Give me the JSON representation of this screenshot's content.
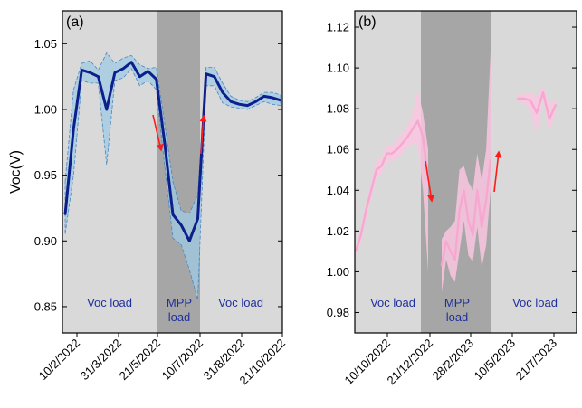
{
  "chart_data": [
    {
      "type": "line",
      "panel_label": "(a)",
      "ylabel": "Voc(V)",
      "xlabel": "",
      "ylim": [
        0.83,
        1.075
      ],
      "yticks": [
        0.85,
        0.9,
        0.95,
        1.0,
        1.05
      ],
      "ytick_labels": [
        "0.85",
        "0.90",
        "0.95",
        "1.00",
        "1.05"
      ],
      "xtick_labels": [
        "10/2/2022",
        "31/3/2022",
        "21/5/2022",
        "10/7/2022",
        "31/8/2022",
        "21/10/2022"
      ],
      "grid": false,
      "line_color": "#0d1f8c",
      "band_color": "#9fcbe3",
      "background_color": "#d9d9d9",
      "shade_color": "#a6a6a6",
      "regions": [
        {
          "label": "Voc load"
        },
        {
          "label": "MPP load"
        },
        {
          "label": "Voc load"
        }
      ],
      "series": [
        {
          "values": [
            0.92,
            0.985,
            1.03,
            1.028,
            1.025,
            1.0,
            1.028,
            1.031,
            1.036,
            1.025,
            1.029,
            1.023,
            0.975,
            0.92,
            0.912,
            0.9,
            0.917,
            1.027,
            1.025,
            1.013,
            1.006,
            1.004,
            1.003,
            1.006,
            1.01,
            1.009,
            1.007
          ],
          "upper": [
            0.945,
            1.015,
            1.035,
            1.037,
            1.03,
            1.043,
            1.035,
            1.039,
            1.041,
            1.034,
            1.031,
            1.032,
            0.99,
            0.945,
            0.923,
            0.921,
            0.935,
            1.032,
            1.032,
            1.02,
            1.01,
            1.007,
            1.006,
            1.009,
            1.013,
            1.013,
            1.011
          ],
          "lower": [
            0.905,
            0.95,
            1.022,
            1.02,
            1.02,
            0.958,
            1.022,
            1.024,
            1.031,
            1.018,
            1.022,
            1.015,
            0.958,
            0.902,
            0.897,
            0.878,
            0.855,
            1.018,
            1.018,
            1.005,
            1.002,
            1.001,
            1.0,
            1.003,
            1.006,
            1.004,
            1.003
          ]
        }
      ],
      "arrows": [
        {
          "direction": "down",
          "color": "#ff1a1a"
        },
        {
          "direction": "up",
          "color": "#ff1a1a"
        }
      ]
    },
    {
      "type": "line",
      "panel_label": "(b)",
      "ylabel": "",
      "xlabel": "",
      "ylim": [
        0.97,
        1.128
      ],
      "yticks": [
        0.98,
        1.0,
        1.02,
        1.04,
        1.06,
        1.08,
        1.1,
        1.12
      ],
      "ytick_labels": [
        "0.98",
        "1.00",
        "1.02",
        "1.04",
        "1.06",
        "1.08",
        "1.10",
        "1.12"
      ],
      "xtick_labels": [
        "10/10/2022",
        "21/12/2022",
        "28/2/2023",
        "10/5/2023",
        "21/7/2023"
      ],
      "grid": false,
      "line_color": "#f7a8d0",
      "band_color": "#f9c6df",
      "background_color": "#d9d9d9",
      "shade_color": "#a6a6a6",
      "regions": [
        {
          "label": "Voc load"
        },
        {
          "label": "MPP load"
        },
        {
          "label": "Voc load"
        }
      ],
      "series": [
        {
          "segments": [
            {
              "values": [
                1.01,
                1.018,
                1.03,
                1.04,
                1.05,
                1.052,
                1.058,
                1.058,
                1.06,
                1.063,
                1.066,
                1.07,
                1.074,
                1.066,
                1.045
              ],
              "upper": [
                1.012,
                1.022,
                1.034,
                1.044,
                1.055,
                1.056,
                1.062,
                1.062,
                1.065,
                1.068,
                1.072,
                1.078,
                1.089,
                1.078,
                1.06
              ],
              "lower": [
                1.008,
                1.014,
                1.026,
                1.036,
                1.046,
                1.048,
                1.054,
                1.054,
                1.056,
                1.058,
                1.061,
                1.063,
                1.062,
                1.04,
                1.0
              ]
            },
            {
              "values": [
                1.003,
                1.015,
                1.01,
                1.006,
                1.03,
                1.04,
                1.025,
                1.018,
                1.04,
                1.022,
                1.035,
                1.055
              ],
              "upper": [
                1.016,
                1.02,
                1.022,
                1.025,
                1.05,
                1.052,
                1.044,
                1.04,
                1.058,
                1.045,
                1.06,
                1.108
              ],
              "lower": [
                0.99,
                1.006,
                0.998,
                0.995,
                1.01,
                1.025,
                1.008,
                1.005,
                1.022,
                1.002,
                1.013,
                1.04
              ]
            },
            {
              "values": [
                1.085,
                1.085,
                1.084,
                1.078,
                1.088,
                1.075,
                1.082
              ],
              "upper": [
                1.087,
                1.087,
                1.088,
                1.086,
                1.091,
                1.082,
                1.085
              ],
              "lower": [
                1.083,
                1.083,
                1.079,
                1.068,
                1.085,
                1.068,
                1.079
              ]
            }
          ]
        }
      ],
      "arrows": [
        {
          "direction": "down",
          "color": "#ff1a1a"
        },
        {
          "direction": "up",
          "color": "#ff1a1a"
        }
      ]
    }
  ]
}
